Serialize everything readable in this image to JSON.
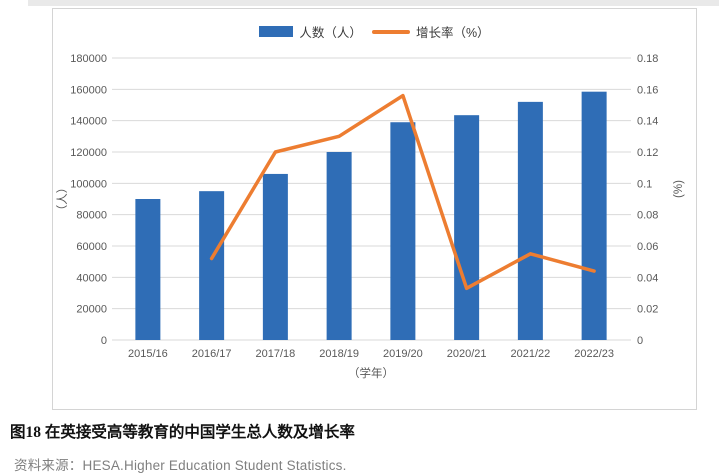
{
  "page": {
    "caption": "图18 在英接受高等教育的中国学生总人数及增长率",
    "source": "资料来源：HESA.Higher Education Student Statistics."
  },
  "legend": {
    "bars_label": "人数（人）",
    "line_label": "增长率（%）"
  },
  "colors": {
    "bar": "#2f6db6",
    "line": "#ed7d31",
    "grid": "#d9d9d9",
    "axis_text": "#595959",
    "border": "#d4d4d4",
    "source_text": "#7f7f7f"
  },
  "chart_data": {
    "type": "bar+line combo",
    "categories": [
      "2015/16",
      "2016/17",
      "2017/18",
      "2018/19",
      "2019/20",
      "2020/21",
      "2021/22",
      "2022/23"
    ],
    "series": [
      {
        "name": "人数（人）",
        "type": "bar",
        "axis": "left",
        "values": [
          90000,
          95000,
          106000,
          120000,
          139000,
          143500,
          152000,
          158500
        ]
      },
      {
        "name": "增长率（%）",
        "type": "line",
        "axis": "right",
        "values": [
          null,
          0.052,
          0.12,
          0.13,
          0.156,
          0.033,
          0.055,
          0.044
        ]
      }
    ],
    "left_axis": {
      "title": "（人）",
      "min": 0,
      "max": 180000,
      "step": 20000,
      "tick_labels": [
        "0",
        "20000",
        "40000",
        "60000",
        "80000",
        "100000",
        "120000",
        "140000",
        "160000",
        "180000"
      ]
    },
    "right_axis": {
      "title": "(%)",
      "min": 0,
      "max": 0.18,
      "step": 0.02,
      "tick_labels": [
        "0",
        "0.02",
        "0.04",
        "0.06",
        "0.08",
        "0.1",
        "0.12",
        "0.14",
        "0.16",
        "0.18"
      ]
    },
    "x_axis_title": "（学年）",
    "legend_position": "top-center",
    "grid": true
  }
}
